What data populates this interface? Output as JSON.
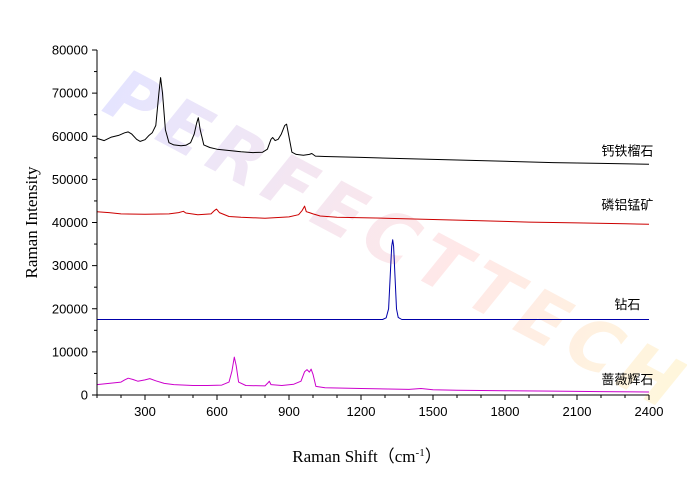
{
  "chart_data": {
    "type": "line",
    "title": "",
    "xlabel": "Raman Shift（cm",
    "xlabel_sup": "-1",
    "xlabel_end": "）",
    "ylabel": "Raman Intensity",
    "xlim": [
      100,
      2400
    ],
    "ylim": [
      0,
      80000
    ],
    "xticks": [
      300,
      600,
      900,
      1200,
      1500,
      1800,
      2100,
      2400
    ],
    "yticks": [
      0,
      10000,
      20000,
      30000,
      40000,
      50000,
      60000,
      70000,
      80000
    ],
    "watermark": "PERFECTTECH",
    "series": [
      {
        "name": "钙铁榴石",
        "color": "#000000",
        "label_pos": [
          2310,
          55500
        ],
        "points": [
          [
            100,
            59500
          ],
          [
            130,
            59000
          ],
          [
            160,
            59800
          ],
          [
            190,
            60200
          ],
          [
            215,
            60800
          ],
          [
            230,
            61000
          ],
          [
            245,
            60500
          ],
          [
            265,
            59300
          ],
          [
            280,
            58800
          ],
          [
            300,
            59200
          ],
          [
            315,
            60100
          ],
          [
            330,
            60800
          ],
          [
            345,
            62500
          ],
          [
            358,
            70000
          ],
          [
            365,
            73600
          ],
          [
            373,
            70000
          ],
          [
            385,
            61500
          ],
          [
            400,
            58500
          ],
          [
            420,
            58000
          ],
          [
            450,
            57800
          ],
          [
            470,
            57900
          ],
          [
            490,
            58500
          ],
          [
            505,
            60500
          ],
          [
            515,
            63000
          ],
          [
            522,
            64300
          ],
          [
            530,
            61500
          ],
          [
            545,
            58000
          ],
          [
            570,
            57400
          ],
          [
            600,
            57000
          ],
          [
            650,
            56700
          ],
          [
            700,
            56400
          ],
          [
            750,
            56200
          ],
          [
            790,
            56300
          ],
          [
            810,
            57000
          ],
          [
            825,
            59300
          ],
          [
            832,
            59700
          ],
          [
            842,
            59000
          ],
          [
            855,
            59300
          ],
          [
            868,
            60500
          ],
          [
            882,
            62500
          ],
          [
            890,
            62800
          ],
          [
            898,
            60500
          ],
          [
            912,
            56300
          ],
          [
            930,
            55800
          ],
          [
            960,
            55600
          ],
          [
            985,
            55800
          ],
          [
            995,
            56000
          ],
          [
            1010,
            55400
          ],
          [
            1050,
            55300
          ],
          [
            1200,
            55100
          ],
          [
            1400,
            54800
          ],
          [
            1600,
            54500
          ],
          [
            1800,
            54200
          ],
          [
            2000,
            53900
          ],
          [
            2200,
            53700
          ],
          [
            2400,
            53500
          ]
        ]
      },
      {
        "name": "磷铝锰矿",
        "color": "#cc0000",
        "label_pos": [
          2310,
          43000
        ],
        "points": [
          [
            100,
            42500
          ],
          [
            150,
            42300
          ],
          [
            200,
            42000
          ],
          [
            300,
            41900
          ],
          [
            400,
            42000
          ],
          [
            440,
            42300
          ],
          [
            460,
            42600
          ],
          [
            470,
            42200
          ],
          [
            520,
            41800
          ],
          [
            575,
            42000
          ],
          [
            590,
            42800
          ],
          [
            598,
            43100
          ],
          [
            610,
            42300
          ],
          [
            650,
            41400
          ],
          [
            700,
            41200
          ],
          [
            800,
            41000
          ],
          [
            900,
            41300
          ],
          [
            940,
            41800
          ],
          [
            955,
            42800
          ],
          [
            965,
            43800
          ],
          [
            972,
            42500
          ],
          [
            985,
            42300
          ],
          [
            1000,
            42000
          ],
          [
            1030,
            41500
          ],
          [
            1100,
            41200
          ],
          [
            1300,
            41000
          ],
          [
            1500,
            40700
          ],
          [
            1700,
            40400
          ],
          [
            1900,
            40100
          ],
          [
            2100,
            39900
          ],
          [
            2300,
            39700
          ],
          [
            2400,
            39600
          ]
        ]
      },
      {
        "name": "钻石",
        "color": "#0000aa",
        "label_pos": [
          2310,
          20000
        ],
        "points": [
          [
            100,
            17500
          ],
          [
            400,
            17500
          ],
          [
            800,
            17500
          ],
          [
            1200,
            17500
          ],
          [
            1290,
            17500
          ],
          [
            1305,
            17900
          ],
          [
            1315,
            20000
          ],
          [
            1322,
            28000
          ],
          [
            1328,
            34500
          ],
          [
            1332,
            36000
          ],
          [
            1336,
            34500
          ],
          [
            1342,
            27000
          ],
          [
            1348,
            20000
          ],
          [
            1355,
            18000
          ],
          [
            1370,
            17500
          ],
          [
            1600,
            17500
          ],
          [
            2000,
            17500
          ],
          [
            2400,
            17500
          ]
        ]
      },
      {
        "name": "蔷薇辉石",
        "color": "#cc00cc",
        "label_pos": [
          2310,
          2500
        ],
        "points": [
          [
            100,
            2400
          ],
          [
            150,
            2700
          ],
          [
            200,
            3000
          ],
          [
            215,
            3500
          ],
          [
            230,
            3900
          ],
          [
            250,
            3600
          ],
          [
            270,
            3200
          ],
          [
            300,
            3500
          ],
          [
            320,
            3800
          ],
          [
            345,
            3300
          ],
          [
            380,
            2700
          ],
          [
            420,
            2400
          ],
          [
            500,
            2200
          ],
          [
            560,
            2200
          ],
          [
            620,
            2300
          ],
          [
            650,
            3000
          ],
          [
            662,
            5500
          ],
          [
            672,
            8800
          ],
          [
            680,
            6800
          ],
          [
            690,
            3000
          ],
          [
            720,
            2200
          ],
          [
            800,
            2100
          ],
          [
            812,
            2800
          ],
          [
            818,
            3200
          ],
          [
            825,
            2400
          ],
          [
            870,
            2200
          ],
          [
            920,
            2500
          ],
          [
            950,
            3200
          ],
          [
            965,
            5400
          ],
          [
            975,
            5900
          ],
          [
            985,
            5300
          ],
          [
            992,
            6000
          ],
          [
            1000,
            4800
          ],
          [
            1012,
            2000
          ],
          [
            1050,
            1700
          ],
          [
            1200,
            1500
          ],
          [
            1400,
            1300
          ],
          [
            1450,
            1500
          ],
          [
            1500,
            1200
          ],
          [
            1600,
            1100
          ],
          [
            1800,
            1000
          ],
          [
            2000,
            900
          ],
          [
            2200,
            800
          ],
          [
            2400,
            700
          ]
        ]
      }
    ]
  }
}
